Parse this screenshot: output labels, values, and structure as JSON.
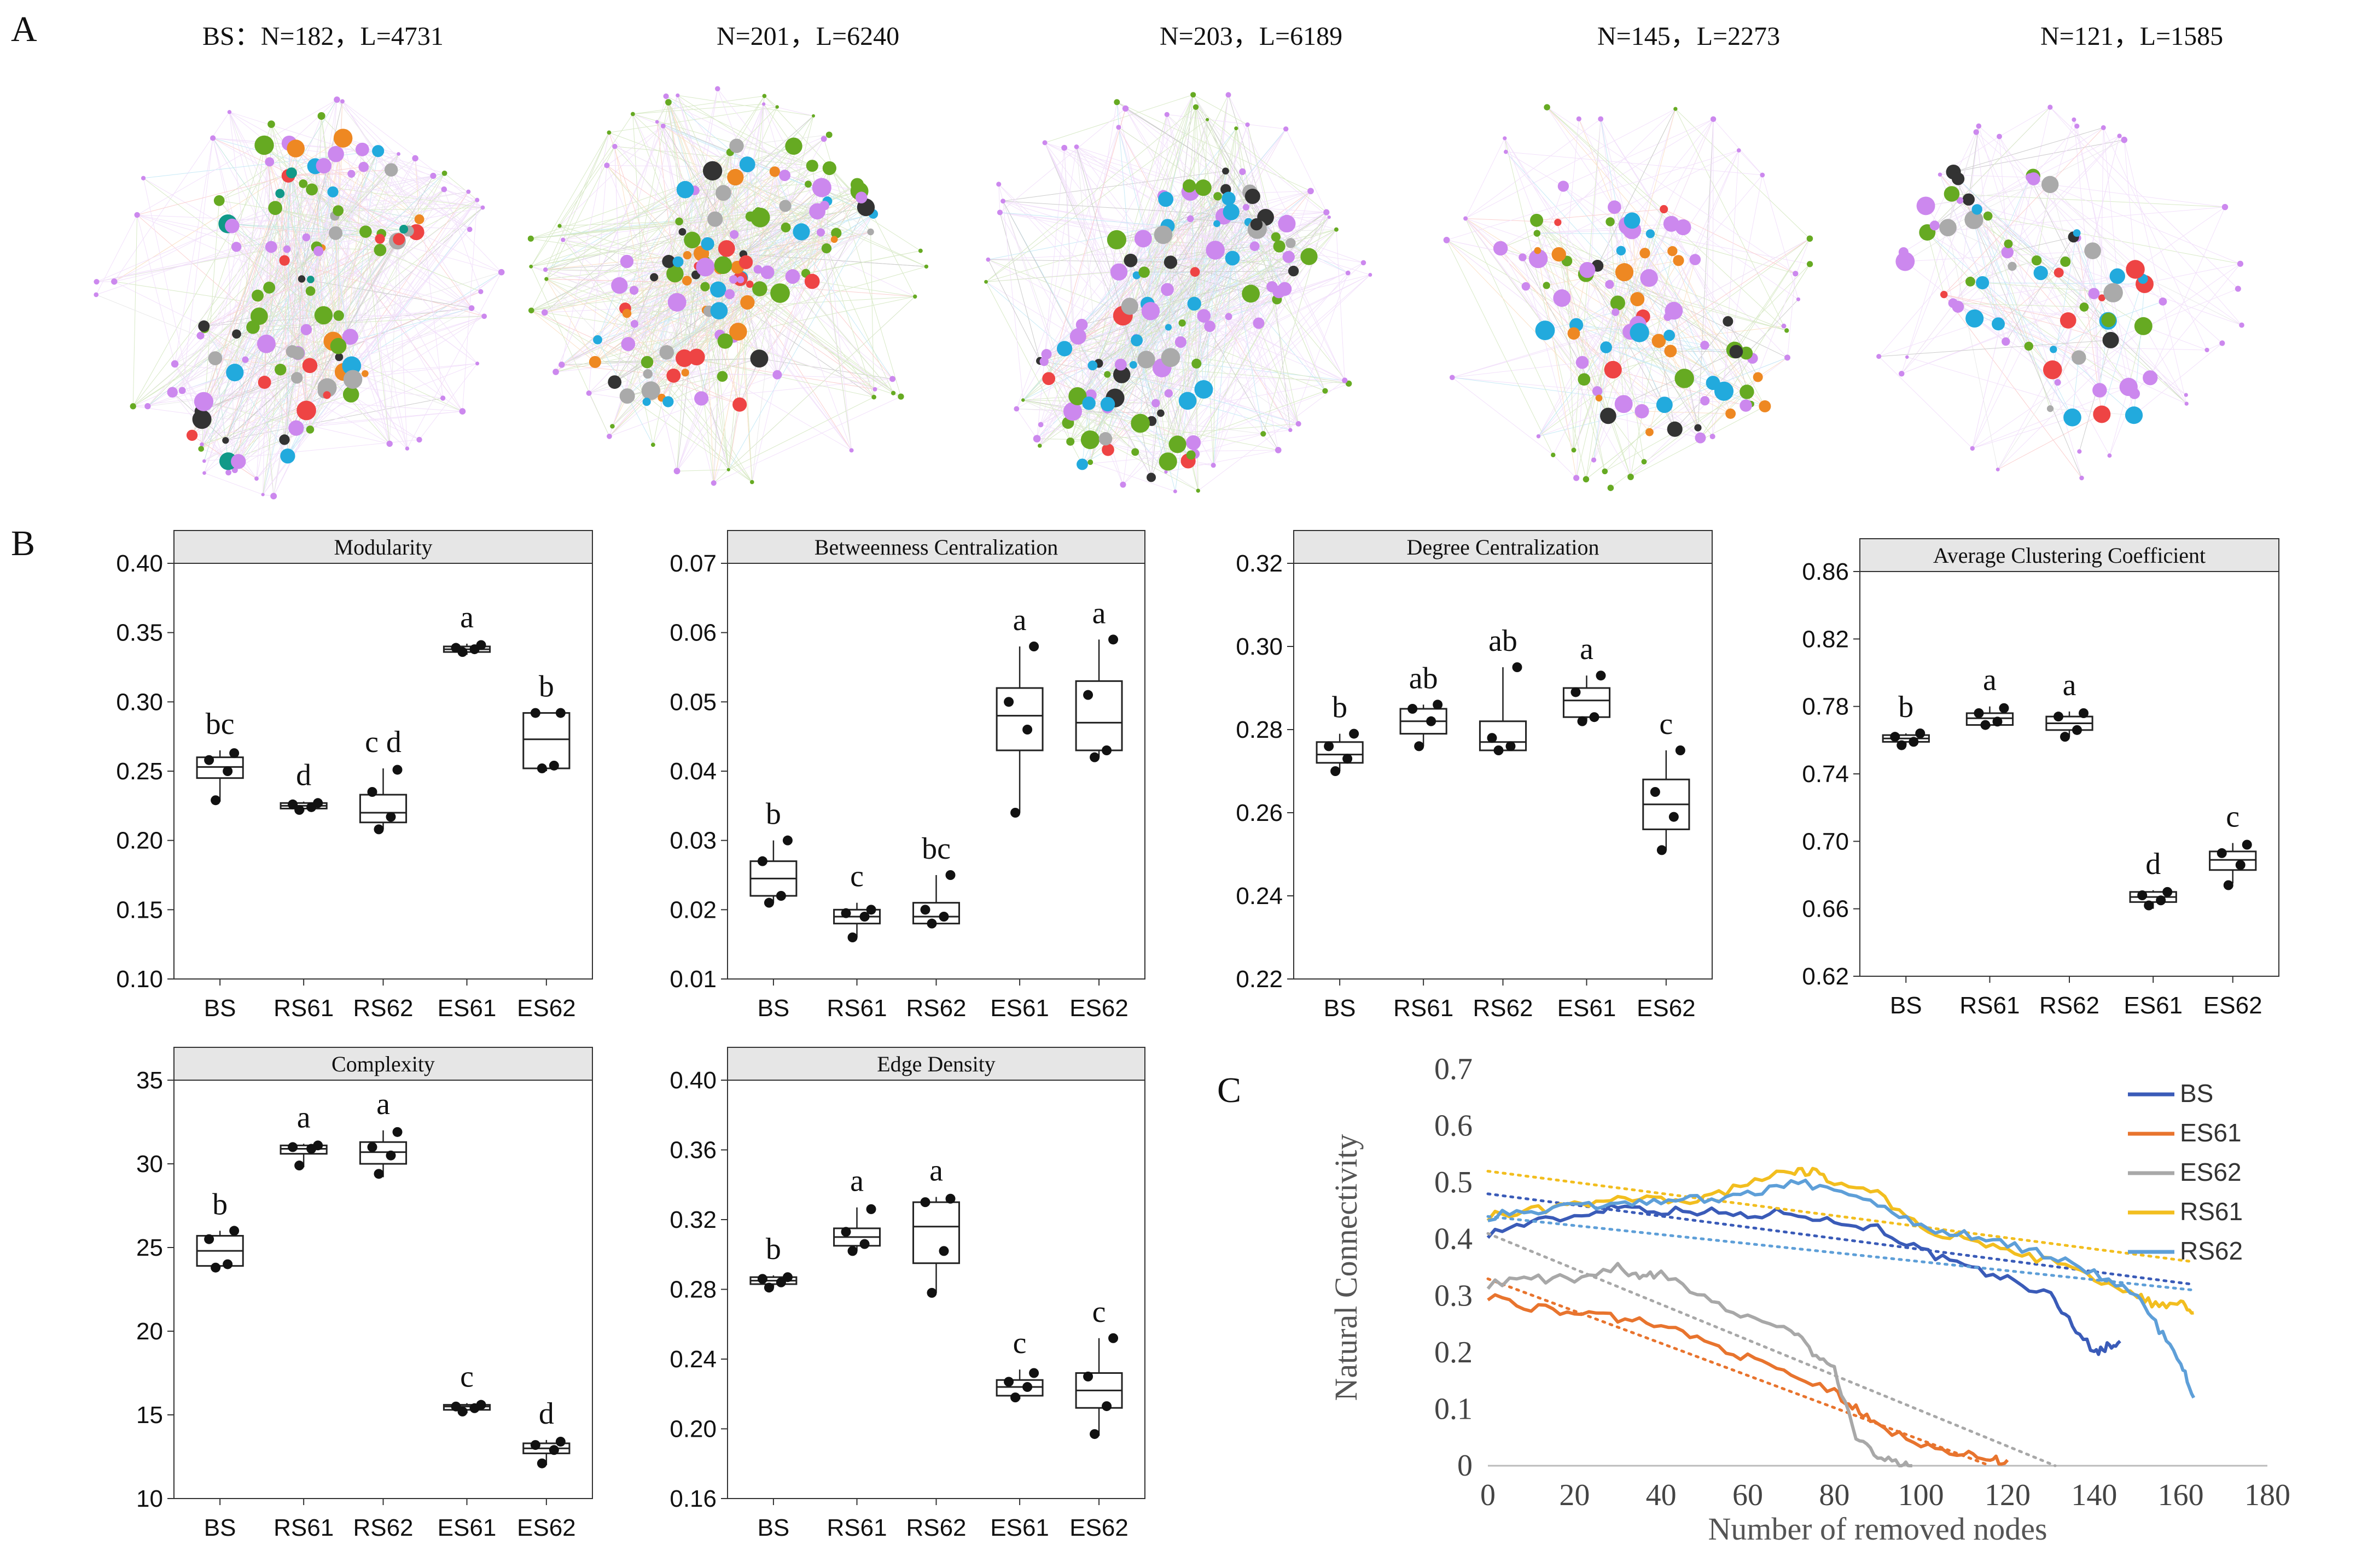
{
  "figure": {
    "panel_labels": [
      "A",
      "B",
      "C"
    ]
  },
  "colors": {
    "purple": "#cc88ee",
    "green": "#66aa22",
    "cyan": "#22aadd",
    "dark": "#333333",
    "gray": "#aaaaaa",
    "orange": "#ee8822",
    "red": "#ee4444",
    "teal": "#119988"
  },
  "networks": [
    {
      "title": "BS：N=182，L=4731",
      "N": 182,
      "L": 4731
    },
    {
      "title": "N=201，L=6240",
      "N": 201,
      "L": 6240
    },
    {
      "title": "N=203，L=6189",
      "N": 203,
      "L": 6189
    },
    {
      "title": "N=145，L=2273",
      "N": 145,
      "L": 2273
    },
    {
      "title": "N=121，L=1585",
      "N": 121,
      "L": 1585
    }
  ],
  "chart_data": [
    {
      "type": "box",
      "title": "Modularity",
      "categories": [
        "BS",
        "RS61",
        "RS62",
        "ES61",
        "ES62"
      ],
      "ylim": [
        0.1,
        0.4
      ],
      "yticks": [
        "0.10",
        "0.15",
        "0.20",
        "0.25",
        "0.30",
        "0.35",
        "0.40"
      ],
      "boxes": [
        {
          "q1": 0.245,
          "median": 0.253,
          "q3": 0.26,
          "wlo": 0.228,
          "whi": 0.265,
          "points": [
            0.229,
            0.25,
            0.258,
            0.263
          ],
          "letter": "bc"
        },
        {
          "q1": 0.223,
          "median": 0.225,
          "q3": 0.227,
          "wlo": 0.221,
          "whi": 0.228,
          "points": [
            0.222,
            0.224,
            0.226,
            0.227
          ],
          "letter": "d"
        },
        {
          "q1": 0.213,
          "median": 0.22,
          "q3": 0.233,
          "wlo": 0.208,
          "whi": 0.252,
          "points": [
            0.208,
            0.217,
            0.235,
            0.251
          ],
          "letter": "c d"
        },
        {
          "q1": 0.336,
          "median": 0.338,
          "q3": 0.34,
          "wlo": 0.334,
          "whi": 0.342,
          "points": [
            0.336,
            0.338,
            0.339,
            0.341
          ],
          "letter": "a"
        },
        {
          "q1": 0.252,
          "median": 0.273,
          "q3": 0.292,
          "wlo": 0.25,
          "whi": 0.292,
          "points": [
            0.252,
            0.254,
            0.292,
            0.292
          ],
          "letter": "b"
        }
      ]
    },
    {
      "type": "box",
      "title": "Betweenness Centralization",
      "categories": [
        "BS",
        "RS61",
        "RS62",
        "ES61",
        "ES62"
      ],
      "ylim": [
        0.01,
        0.07
      ],
      "yticks": [
        "0.01",
        "0.02",
        "0.03",
        "0.04",
        "0.05",
        "0.06",
        "0.07"
      ],
      "boxes": [
        {
          "q1": 0.022,
          "median": 0.0245,
          "q3": 0.027,
          "wlo": 0.021,
          "whi": 0.03,
          "points": [
            0.021,
            0.022,
            0.027,
            0.03
          ],
          "letter": "b"
        },
        {
          "q1": 0.018,
          "median": 0.019,
          "q3": 0.02,
          "wlo": 0.016,
          "whi": 0.021,
          "points": [
            0.016,
            0.019,
            0.0195,
            0.02
          ],
          "letter": "c"
        },
        {
          "q1": 0.018,
          "median": 0.019,
          "q3": 0.021,
          "wlo": 0.018,
          "whi": 0.025,
          "points": [
            0.018,
            0.019,
            0.02,
            0.025
          ],
          "letter": "bc"
        },
        {
          "q1": 0.043,
          "median": 0.048,
          "q3": 0.052,
          "wlo": 0.034,
          "whi": 0.058,
          "points": [
            0.034,
            0.046,
            0.05,
            0.058
          ],
          "letter": "a"
        },
        {
          "q1": 0.043,
          "median": 0.047,
          "q3": 0.053,
          "wlo": 0.042,
          "whi": 0.059,
          "points": [
            0.042,
            0.043,
            0.051,
            0.059
          ],
          "letter": "a"
        }
      ]
    },
    {
      "type": "box",
      "title": "Degree Centralization",
      "categories": [
        "BS",
        "RS61",
        "RS62",
        "ES61",
        "ES62"
      ],
      "ylim": [
        0.22,
        0.32
      ],
      "yticks": [
        "0.22",
        "0.24",
        "0.26",
        "0.28",
        "0.30",
        "0.32"
      ],
      "boxes": [
        {
          "q1": 0.272,
          "median": 0.274,
          "q3": 0.277,
          "wlo": 0.27,
          "whi": 0.279,
          "points": [
            0.27,
            0.273,
            0.276,
            0.279
          ],
          "letter": "b"
        },
        {
          "q1": 0.279,
          "median": 0.282,
          "q3": 0.285,
          "wlo": 0.276,
          "whi": 0.286,
          "points": [
            0.276,
            0.282,
            0.285,
            0.286
          ],
          "letter": "ab"
        },
        {
          "q1": 0.275,
          "median": 0.277,
          "q3": 0.282,
          "wlo": 0.275,
          "whi": 0.295,
          "points": [
            0.275,
            0.276,
            0.278,
            0.295
          ],
          "letter": "ab"
        },
        {
          "q1": 0.283,
          "median": 0.287,
          "q3": 0.29,
          "wlo": 0.282,
          "whi": 0.293,
          "points": [
            0.282,
            0.283,
            0.289,
            0.293
          ],
          "letter": "a"
        },
        {
          "q1": 0.256,
          "median": 0.262,
          "q3": 0.268,
          "wlo": 0.251,
          "whi": 0.275,
          "points": [
            0.251,
            0.259,
            0.265,
            0.275
          ],
          "letter": "c"
        }
      ]
    },
    {
      "type": "box",
      "title": "Average Clustering Coefficient",
      "categories": [
        "BS",
        "RS61",
        "RS62",
        "ES61",
        "ES62"
      ],
      "ylim": [
        0.62,
        0.86
      ],
      "yticks": [
        "0.62",
        "0.66",
        "0.70",
        "0.74",
        "0.78",
        "0.82",
        "0.86"
      ],
      "boxes": [
        {
          "q1": 0.759,
          "median": 0.761,
          "q3": 0.763,
          "wlo": 0.757,
          "whi": 0.764,
          "points": [
            0.757,
            0.759,
            0.762,
            0.764
          ],
          "letter": "b"
        },
        {
          "q1": 0.769,
          "median": 0.773,
          "q3": 0.776,
          "wlo": 0.768,
          "whi": 0.78,
          "points": [
            0.769,
            0.771,
            0.776,
            0.779
          ],
          "letter": "a"
        },
        {
          "q1": 0.766,
          "median": 0.77,
          "q3": 0.774,
          "wlo": 0.762,
          "whi": 0.777,
          "points": [
            0.762,
            0.766,
            0.774,
            0.776
          ],
          "letter": "a"
        },
        {
          "q1": 0.664,
          "median": 0.667,
          "q3": 0.67,
          "wlo": 0.66,
          "whi": 0.671,
          "points": [
            0.662,
            0.665,
            0.668,
            0.67
          ],
          "letter": "d"
        },
        {
          "q1": 0.683,
          "median": 0.689,
          "q3": 0.694,
          "wlo": 0.675,
          "whi": 0.699,
          "points": [
            0.674,
            0.686,
            0.693,
            0.698
          ],
          "letter": "c"
        }
      ]
    },
    {
      "type": "box",
      "title": "Complexity",
      "categories": [
        "BS",
        "RS61",
        "RS62",
        "ES61",
        "ES62"
      ],
      "ylim": [
        10,
        35
      ],
      "yticks": [
        "10",
        "15",
        "20",
        "25",
        "30",
        "35"
      ],
      "boxes": [
        {
          "q1": 23.9,
          "median": 24.8,
          "q3": 25.7,
          "wlo": 23.8,
          "whi": 26.0,
          "points": [
            23.8,
            24.0,
            25.5,
            26.0
          ],
          "letter": "b"
        },
        {
          "q1": 30.6,
          "median": 30.9,
          "q3": 31.1,
          "wlo": 29.8,
          "whi": 31.2,
          "points": [
            29.9,
            30.9,
            31.0,
            31.1
          ],
          "letter": "a"
        },
        {
          "q1": 30.0,
          "median": 30.7,
          "q3": 31.3,
          "wlo": 29.2,
          "whi": 32.0,
          "points": [
            29.4,
            30.5,
            31.0,
            31.9
          ],
          "letter": "a"
        },
        {
          "q1": 15.3,
          "median": 15.5,
          "q3": 15.6,
          "wlo": 15.1,
          "whi": 15.7,
          "points": [
            15.2,
            15.4,
            15.5,
            15.6
          ],
          "letter": "c"
        },
        {
          "q1": 12.7,
          "median": 13.0,
          "q3": 13.3,
          "wlo": 12.0,
          "whi": 13.5,
          "points": [
            12.1,
            12.9,
            13.2,
            13.4
          ],
          "letter": "d"
        }
      ]
    },
    {
      "type": "box",
      "title": "Edge Density",
      "categories": [
        "BS",
        "RS61",
        "RS62",
        "ES61",
        "ES62"
      ],
      "ylim": [
        0.16,
        0.4
      ],
      "yticks": [
        "0.16",
        "0.20",
        "0.24",
        "0.28",
        "0.32",
        "0.36",
        "0.40"
      ],
      "boxes": [
        {
          "q1": 0.283,
          "median": 0.285,
          "q3": 0.287,
          "wlo": 0.281,
          "whi": 0.288,
          "points": [
            0.281,
            0.284,
            0.286,
            0.287
          ],
          "letter": "b"
        },
        {
          "q1": 0.305,
          "median": 0.31,
          "q3": 0.315,
          "wlo": 0.302,
          "whi": 0.327,
          "points": [
            0.302,
            0.306,
            0.313,
            0.326
          ],
          "letter": "a"
        },
        {
          "q1": 0.295,
          "median": 0.316,
          "q3": 0.33,
          "wlo": 0.278,
          "whi": 0.333,
          "points": [
            0.278,
            0.302,
            0.33,
            0.332
          ],
          "letter": "a"
        },
        {
          "q1": 0.219,
          "median": 0.224,
          "q3": 0.228,
          "wlo": 0.217,
          "whi": 0.234,
          "points": [
            0.218,
            0.224,
            0.227,
            0.232
          ],
          "letter": "c"
        },
        {
          "q1": 0.212,
          "median": 0.222,
          "q3": 0.232,
          "wlo": 0.196,
          "whi": 0.252,
          "points": [
            0.197,
            0.213,
            0.23,
            0.252
          ],
          "letter": "c"
        }
      ]
    },
    {
      "type": "line",
      "xlabel": "Number of removed nodes",
      "ylabel": "Natural Connectivity",
      "xlim": [
        0,
        180
      ],
      "ylim": [
        0,
        0.7
      ],
      "xticks": [
        "0",
        "20",
        "40",
        "60",
        "80",
        "100",
        "120",
        "140",
        "160",
        "180"
      ],
      "yticks": [
        "0",
        "0.1",
        "0.2",
        "0.3",
        "0.4",
        "0.5",
        "0.6",
        "0.7"
      ],
      "series": [
        {
          "name": "BS",
          "color": "#3a5bb8",
          "x": [
            0,
            10,
            20,
            30,
            40,
            50,
            60,
            70,
            80,
            90,
            100,
            110,
            120,
            130,
            135,
            140,
            143,
            146
          ],
          "y": [
            0.41,
            0.43,
            0.44,
            0.46,
            0.45,
            0.45,
            0.44,
            0.45,
            0.43,
            0.42,
            0.38,
            0.35,
            0.33,
            0.3,
            0.25,
            0.2,
            0.21,
            0.22
          ],
          "trend": [
            0.48,
            0.32
          ]
        },
        {
          "name": "ES61",
          "color": "#e8742e",
          "x": [
            0,
            10,
            20,
            30,
            40,
            50,
            60,
            70,
            80,
            85,
            90,
            100,
            110,
            116,
            120
          ],
          "y": [
            0.3,
            0.28,
            0.27,
            0.26,
            0.25,
            0.22,
            0.19,
            0.16,
            0.13,
            0.1,
            0.07,
            0.04,
            0.02,
            0.01,
            0.01
          ],
          "trend": [
            0.33,
            0.0
          ],
          "trend_end": 116
        },
        {
          "name": "ES62",
          "color": "#a8a8a8",
          "x": [
            0,
            10,
            20,
            30,
            35,
            40,
            50,
            60,
            70,
            75,
            80,
            85,
            90,
            95,
            98
          ],
          "y": [
            0.32,
            0.33,
            0.33,
            0.35,
            0.33,
            0.34,
            0.3,
            0.26,
            0.24,
            0.2,
            0.17,
            0.05,
            0.02,
            0.0,
            0.0
          ],
          "trend": [
            0.41,
            0.0
          ],
          "trend_end": 131
        },
        {
          "name": "RS61",
          "color": "#f2be1f",
          "x": [
            0,
            10,
            20,
            30,
            40,
            50,
            60,
            70,
            75,
            80,
            90,
            100,
            110,
            120,
            130,
            140,
            150,
            155,
            160,
            163
          ],
          "y": [
            0.44,
            0.45,
            0.46,
            0.47,
            0.47,
            0.47,
            0.5,
            0.52,
            0.52,
            0.5,
            0.48,
            0.42,
            0.4,
            0.38,
            0.36,
            0.33,
            0.3,
            0.28,
            0.29,
            0.27
          ],
          "trend": [
            0.52,
            0.36
          ]
        },
        {
          "name": "RS62",
          "color": "#5e9fd8",
          "x": [
            0,
            10,
            20,
            30,
            40,
            50,
            60,
            70,
            80,
            90,
            100,
            110,
            120,
            130,
            140,
            150,
            155,
            160,
            163
          ],
          "y": [
            0.44,
            0.45,
            0.46,
            0.46,
            0.47,
            0.47,
            0.48,
            0.5,
            0.49,
            0.46,
            0.42,
            0.41,
            0.39,
            0.37,
            0.34,
            0.3,
            0.24,
            0.18,
            0.12
          ],
          "trend": [
            0.44,
            0.31
          ]
        }
      ],
      "legend": "top-right"
    }
  ]
}
